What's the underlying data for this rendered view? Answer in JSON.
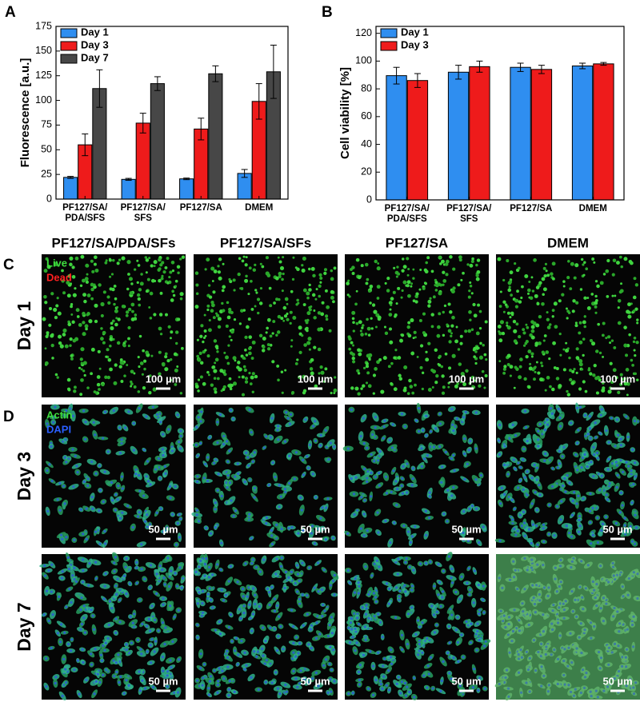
{
  "panels": [
    "A",
    "B",
    "C",
    "D"
  ],
  "chart_data": [
    {
      "type": "bar",
      "ylabel": "Fluorescence [a.u.]",
      "categories": [
        [
          "PF127/SA/",
          "PDA/SFS"
        ],
        [
          "PF127/SA/",
          "SFS"
        ],
        [
          "PF127/SA"
        ],
        [
          "DMEM"
        ]
      ],
      "series": [
        {
          "name": "Day 1",
          "color": "#2f8ef0",
          "values": [
            22,
            20,
            20.5,
            26
          ],
          "errors": [
            1,
            1,
            0.8,
            4
          ]
        },
        {
          "name": "Day 3",
          "color": "#ee1b1b",
          "values": [
            55,
            77,
            71,
            99
          ],
          "errors": [
            11,
            10,
            11,
            18
          ]
        },
        {
          "name": "Day 7",
          "color": "#474747",
          "values": [
            112,
            117,
            127,
            129
          ],
          "errors": [
            19,
            7,
            8,
            27
          ]
        }
      ],
      "ylim": [
        0,
        175
      ],
      "yticks": [
        0,
        25,
        50,
        75,
        100,
        125,
        150,
        175
      ],
      "legend": "upper left"
    },
    {
      "type": "bar",
      "ylabel": "Cell viability [%]",
      "categories": [
        [
          "PF127/SA/",
          "PDA/SFS"
        ],
        [
          "PF127/SA/",
          "SFS"
        ],
        [
          "PF127/SA"
        ],
        [
          "DMEM"
        ]
      ],
      "series": [
        {
          "name": "Day 1",
          "color": "#2f8ef0",
          "values": [
            89.5,
            92,
            95.5,
            96.5
          ],
          "errors": [
            6,
            5,
            3,
            2
          ]
        },
        {
          "name": "Day 3",
          "color": "#ee1b1b",
          "values": [
            86,
            96,
            94,
            98
          ],
          "errors": [
            5,
            4,
            3,
            1
          ]
        }
      ],
      "ylim": [
        0,
        125
      ],
      "yticks": [
        0,
        20,
        40,
        60,
        80,
        100,
        120
      ],
      "legend": "upper left"
    }
  ],
  "images": {
    "columns": [
      "PF127/SA/PDA/SFs",
      "PF127/SA/SFs",
      "PF127/SA",
      "DMEM"
    ],
    "rows": [
      "Day 1",
      "Day 3",
      "Day 7"
    ],
    "stain_c": [
      "Live",
      "Dead"
    ],
    "stain_d": [
      "Actin",
      "DAPI"
    ],
    "scale_bars": [
      "100 µm",
      "50 µm",
      "50 µm"
    ]
  }
}
